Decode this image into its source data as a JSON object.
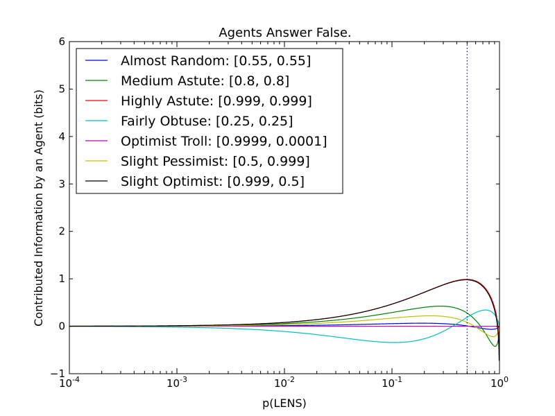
{
  "chart_data": {
    "type": "line",
    "title": "Agents Answer False.",
    "xlabel": "p(LENS)",
    "ylabel": "Contributed Information by an Agent (bits)",
    "xscale": "log",
    "xlim": [
      0.0001,
      1
    ],
    "ylim": [
      -1,
      6
    ],
    "xticks": [
      0.0001,
      0.001,
      0.01,
      0.1,
      1
    ],
    "xtick_labels": [
      {
        "base": "10",
        "exp": "-4"
      },
      {
        "base": "10",
        "exp": "-3"
      },
      {
        "base": "10",
        "exp": "-2"
      },
      {
        "base": "10",
        "exp": "-1"
      },
      {
        "base": "10",
        "exp": "0"
      }
    ],
    "yticks": [
      -1,
      0,
      1,
      2,
      3,
      4,
      5,
      6
    ],
    "ytick_labels": [
      "−1",
      "0",
      "1",
      "2",
      "3",
      "4",
      "5",
      "6"
    ],
    "grid": false,
    "legend_position": "top-left",
    "reference_line": {
      "x": 0.5,
      "color": "#0000ff",
      "style": "dotted"
    },
    "series": [
      {
        "name": "Almost Random: [0.55, 0.55]",
        "color": "#0000ff",
        "params": [
          0.55,
          0.55
        ]
      },
      {
        "name": "Medium Astute: [0.8, 0.8]",
        "color": "#008000",
        "params": [
          0.8,
          0.8
        ]
      },
      {
        "name": "Highly Astute: [0.999, 0.999]",
        "color": "#ff0000",
        "params": [
          0.999,
          0.999
        ]
      },
      {
        "name": "Fairly Obtuse: [0.25, 0.25]",
        "color": "#00bfbf",
        "params": [
          0.25,
          0.25
        ]
      },
      {
        "name": "Optimist Troll: [0.9999, 0.0001]",
        "color": "#bf00bf",
        "params": [
          0.9999,
          0.0001
        ]
      },
      {
        "name": "Slight Pessimist: [0.5, 0.999]",
        "color": "#bfbf00",
        "params": [
          0.5,
          0.999
        ]
      },
      {
        "name": "Slight Optimist: [0.999, 0.5]",
        "color": "#000000",
        "params": [
          0.999,
          0.5
        ]
      }
    ]
  }
}
